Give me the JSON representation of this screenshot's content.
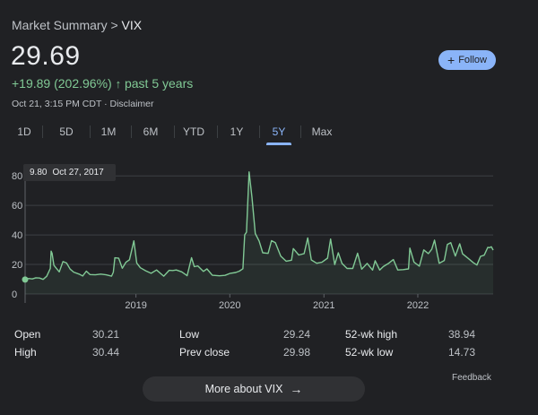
{
  "breadcrumb": {
    "parent": "Market Summary",
    "separator": ">",
    "current": "VIX"
  },
  "quote": {
    "price": "29.69",
    "change": "+19.89 (202.96%)",
    "arrow": "↑",
    "period": "past 5 years",
    "timestamp": "Oct 21, 3:15 PM CDT · Disclaimer"
  },
  "follow_button": {
    "icon": "+",
    "label": "Follow"
  },
  "tabs": [
    {
      "label": "1D",
      "active": false
    },
    {
      "label": "5D",
      "active": false
    },
    {
      "label": "1M",
      "active": false
    },
    {
      "label": "6M",
      "active": false
    },
    {
      "label": "YTD",
      "active": false
    },
    {
      "label": "1Y",
      "active": false
    },
    {
      "label": "5Y",
      "active": true
    },
    {
      "label": "Max",
      "active": false
    }
  ],
  "tooltip": {
    "value": "9.80",
    "date": "Oct 27, 2017"
  },
  "colors": {
    "accent": "#8ab4f8",
    "line": "#81c995",
    "background": "#202124"
  },
  "chart_data": {
    "type": "line",
    "series": [
      {
        "x": [
          "2017-10-27",
          "2017-11-10",
          "2017-11-24",
          "2017-12-08",
          "2017-12-22",
          "2018-01-05",
          "2018-01-19",
          "2018-02-02",
          "2018-02-05",
          "2018-02-09",
          "2018-02-16",
          "2018-02-23",
          "2018-03-09",
          "2018-03-23",
          "2018-04-06",
          "2018-04-20",
          "2018-05-04",
          "2018-05-25",
          "2018-06-08",
          "2018-06-22",
          "2018-07-06",
          "2018-07-27",
          "2018-08-17",
          "2018-09-07",
          "2018-09-28",
          "2018-10-05",
          "2018-10-11",
          "2018-10-26",
          "2018-11-09",
          "2018-11-23",
          "2018-12-07",
          "2018-12-24",
          "2019-01-04",
          "2019-01-18",
          "2019-02-08",
          "2019-03-01",
          "2019-03-22",
          "2019-04-19",
          "2019-05-10",
          "2019-05-24",
          "2019-06-07",
          "2019-06-28",
          "2019-07-19",
          "2019-08-05",
          "2019-08-16",
          "2019-08-30",
          "2019-09-20",
          "2019-10-04",
          "2019-10-25",
          "2019-11-22",
          "2019-12-13",
          "2020-01-03",
          "2020-01-24",
          "2020-02-07",
          "2020-02-21",
          "2020-02-28",
          "2020-03-06",
          "2020-03-16",
          "2020-03-27",
          "2020-04-09",
          "2020-04-24",
          "2020-05-08",
          "2020-05-29",
          "2020-06-11",
          "2020-06-26",
          "2020-07-17",
          "2020-08-07",
          "2020-08-28",
          "2020-09-04",
          "2020-09-25",
          "2020-10-16",
          "2020-10-30",
          "2020-11-13",
          "2020-12-04",
          "2020-12-24",
          "2021-01-15",
          "2021-01-27",
          "2021-02-12",
          "2021-02-26",
          "2021-03-12",
          "2021-04-01",
          "2021-04-23",
          "2021-05-12",
          "2021-05-28",
          "2021-06-18",
          "2021-07-09",
          "2021-07-19",
          "2021-08-06",
          "2021-08-20",
          "2021-09-10",
          "2021-09-28",
          "2021-10-15",
          "2021-11-05",
          "2021-11-26",
          "2021-12-01",
          "2021-12-17",
          "2022-01-07",
          "2022-01-24",
          "2022-02-11",
          "2022-02-24",
          "2022-03-07",
          "2022-03-25",
          "2022-04-14",
          "2022-04-26",
          "2022-05-09",
          "2022-05-27",
          "2022-06-13",
          "2022-06-24",
          "2022-07-15",
          "2022-08-05",
          "2022-08-19",
          "2022-09-02",
          "2022-09-16",
          "2022-09-30",
          "2022-10-07",
          "2022-10-14",
          "2022-10-21"
        ],
        "values": [
          9.8,
          10.5,
          10.2,
          11.0,
          10.8,
          9.9,
          12.0,
          17.3,
          29.0,
          27.5,
          19.5,
          18.0,
          15.0,
          22.0,
          21.0,
          16.9,
          14.8,
          13.5,
          12.2,
          15.5,
          13.2,
          13.0,
          13.5,
          13.0,
          12.1,
          14.8,
          24.5,
          24.2,
          17.4,
          21.5,
          23.2,
          36.0,
          21.0,
          17.8,
          15.7,
          14.0,
          16.3,
          12.1,
          16.0,
          15.9,
          16.3,
          15.0,
          12.4,
          24.6,
          18.5,
          19.0,
          15.3,
          17.0,
          12.7,
          12.3,
          12.6,
          14.0,
          14.6,
          15.5,
          17.1,
          40.1,
          41.9,
          82.7,
          65.5,
          41.0,
          35.9,
          27.9,
          27.5,
          36.1,
          34.7,
          25.7,
          22.2,
          22.9,
          30.8,
          26.4,
          27.4,
          38.0,
          23.1,
          20.8,
          21.5,
          24.3,
          37.2,
          19.9,
          27.9,
          20.7,
          17.3,
          17.3,
          27.6,
          16.8,
          20.7,
          16.2,
          22.5,
          16.2,
          18.6,
          20.9,
          23.3,
          16.3,
          16.5,
          17.0,
          31.1,
          21.6,
          18.8,
          29.9,
          27.4,
          30.3,
          36.5,
          20.8,
          22.7,
          33.5,
          34.8,
          25.7,
          34.0,
          27.2,
          24.2,
          21.2,
          19.6,
          25.5,
          26.3,
          31.6,
          31.4,
          32.0,
          29.7
        ]
      }
    ],
    "xticks": [
      "2019",
      "2020",
      "2021",
      "2022"
    ],
    "yticks": [
      0,
      20,
      40,
      60,
      80
    ],
    "ylim": [
      0,
      85
    ],
    "xlim": [
      "2017-10-27",
      "2022-10-21"
    ],
    "grid": true
  },
  "stats": {
    "open_label": "Open",
    "open": "30.21",
    "high_label": "High",
    "high": "30.44",
    "low_label": "Low",
    "low": "29.24",
    "prev_close_label": "Prev close",
    "prev_close": "29.98",
    "wk52_high_label": "52-wk high",
    "wk52_high": "38.94",
    "wk52_low_label": "52-wk low",
    "wk52_low": "14.73"
  },
  "feedback": "Feedback",
  "more_button": {
    "label": "More about VIX",
    "icon": "→"
  }
}
